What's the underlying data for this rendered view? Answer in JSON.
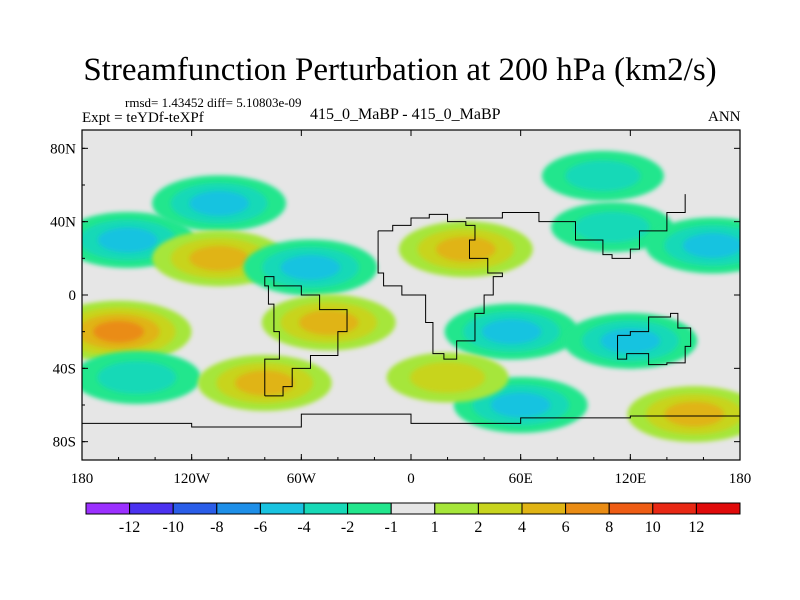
{
  "chart_data": {
    "type": "heatmap",
    "title": "Streamfunction Perturbation at 200 hPa (km2/s)",
    "subtitle_stats": "rmsd= 1.43452 diff= 5.10803e-09",
    "experiment": "Expt = teYDf-teXPf",
    "case_label": "415_0_MaBP - 415_0_MaBP",
    "season": "ANN",
    "xlabel": "",
    "ylabel": "",
    "x_ticks": [
      "180",
      "120W",
      "60W",
      "0",
      "60E",
      "120E",
      "180"
    ],
    "y_ticks": [
      "80N",
      "40N",
      "0",
      "40S",
      "80S"
    ],
    "xlim": [
      -180,
      180
    ],
    "ylim": [
      -90,
      90
    ],
    "colorbar": {
      "labels": [
        "-12",
        "-10",
        "-8",
        "-6",
        "-4",
        "-2",
        "-1",
        "1",
        "2",
        "4",
        "6",
        "8",
        "10",
        "12"
      ],
      "colors": [
        "#9b30ff",
        "#4b32f0",
        "#2a5de8",
        "#1e8fe8",
        "#19c3e0",
        "#17d9b7",
        "#22e68d",
        "#e6e6e6",
        "#a6e63a",
        "#c8d41e",
        "#e0b414",
        "#ea8c14",
        "#ee5c14",
        "#e82814",
        "#e00a0a"
      ]
    },
    "features": [
      {
        "lon": -155,
        "lat": 30,
        "value": -4
      },
      {
        "lon": -105,
        "lat": 50,
        "value": -4
      },
      {
        "lon": -105,
        "lat": 20,
        "value": 4
      },
      {
        "lon": -55,
        "lat": 15,
        "value": -4
      },
      {
        "lon": -160,
        "lat": -20,
        "value": 6
      },
      {
        "lon": -150,
        "lat": -45,
        "value": -3
      },
      {
        "lon": -80,
        "lat": -48,
        "value": 4
      },
      {
        "lon": -45,
        "lat": -15,
        "value": 4
      },
      {
        "lon": 30,
        "lat": 25,
        "value": 4
      },
      {
        "lon": 55,
        "lat": -20,
        "value": -4
      },
      {
        "lon": 105,
        "lat": 65,
        "value": -2
      },
      {
        "lon": 110,
        "lat": 37,
        "value": -2
      },
      {
        "lon": 165,
        "lat": 27,
        "value": -4
      },
      {
        "lon": 120,
        "lat": -25,
        "value": -4
      },
      {
        "lon": 60,
        "lat": -60,
        "value": -4
      },
      {
        "lon": 155,
        "lat": -65,
        "value": 4
      },
      {
        "lon": 20,
        "lat": -45,
        "value": 2
      }
    ]
  }
}
